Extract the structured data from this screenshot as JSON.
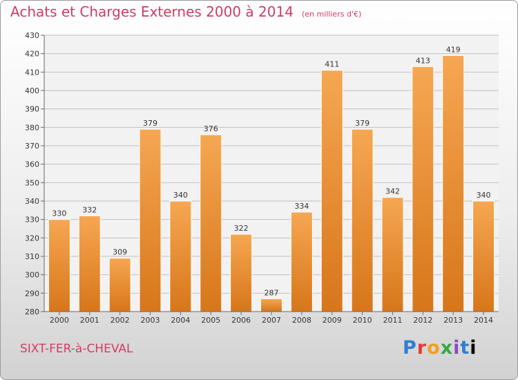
{
  "header": {
    "title": "Achats et Charges Externes 2000 à 2014",
    "unit": "(en milliers d'€)"
  },
  "footer": {
    "location": "SIXT-FER-à-CHEVAL",
    "logo": "Proxiti"
  },
  "colors": {
    "title": "#d33a62",
    "bar_light": "#f6a752",
    "bar_dark": "#d7761a",
    "grid": "#bfbfbf"
  },
  "chart_data": {
    "type": "bar",
    "title": "Achats et Charges Externes 2000 à 2014",
    "subtitle": "(en milliers d'€)",
    "categories": [
      "2000",
      "2001",
      "2002",
      "2003",
      "2004",
      "2005",
      "2006",
      "2007",
      "2008",
      "2009",
      "2010",
      "2011",
      "2012",
      "2013",
      "2014"
    ],
    "values": [
      330,
      332,
      309,
      379,
      340,
      376,
      322,
      287,
      334,
      411,
      379,
      342,
      413,
      419,
      340
    ],
    "ylim": [
      280,
      430
    ],
    "ytick_step": 10,
    "grid": true,
    "data_labels": true
  }
}
